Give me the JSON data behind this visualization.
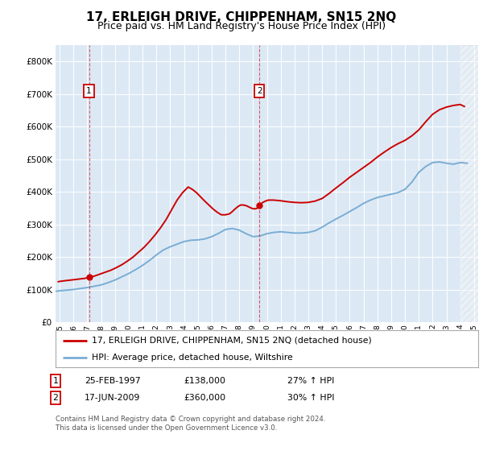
{
  "title": "17, ERLEIGH DRIVE, CHIPPENHAM, SN15 2NQ",
  "subtitle": "Price paid vs. HM Land Registry's House Price Index (HPI)",
  "title_fontsize": 11,
  "subtitle_fontsize": 9,
  "background_color": "#dce9f5",
  "plot_bg_color": "#dce9f5",
  "legend_line1": "17, ERLEIGH DRIVE, CHIPPENHAM, SN15 2NQ (detached house)",
  "legend_line2": "HPI: Average price, detached house, Wiltshire",
  "red_color": "#cc0000",
  "blue_color": "#7aadd4",
  "annotation1": {
    "label": "1",
    "date": "25-FEB-1997",
    "price": 138000,
    "hpi_pct": "27% ↑ HPI"
  },
  "annotation2": {
    "label": "2",
    "date": "17-JUN-2009",
    "price": 360000,
    "hpi_pct": "30% ↑ HPI"
  },
  "footer": "Contains HM Land Registry data © Crown copyright and database right 2024.\nThis data is licensed under the Open Government Licence v3.0.",
  "ylim": [
    0,
    850000
  ],
  "yticks": [
    0,
    100000,
    200000,
    300000,
    400000,
    500000,
    600000,
    700000,
    800000
  ],
  "xlim_start": 1994.7,
  "xlim_end": 2025.3,
  "hpi_years": [
    1994.5,
    1995,
    1995.5,
    1996,
    1996.5,
    1997,
    1997.5,
    1998,
    1998.5,
    1999,
    1999.5,
    2000,
    2000.5,
    2001,
    2001.5,
    2002,
    2002.5,
    2003,
    2003.5,
    2004,
    2004.5,
    2005,
    2005.5,
    2006,
    2006.5,
    2007,
    2007.5,
    2008,
    2008.5,
    2009,
    2009.5,
    2010,
    2010.5,
    2011,
    2011.5,
    2012,
    2012.5,
    2013,
    2013.5,
    2014,
    2014.5,
    2015,
    2015.5,
    2016,
    2016.5,
    2017,
    2017.5,
    2018,
    2018.5,
    2019,
    2019.5,
    2020,
    2020.5,
    2021,
    2021.5,
    2022,
    2022.5,
    2023,
    2023.5,
    2024,
    2024.5
  ],
  "hpi_values": [
    95000,
    97000,
    99000,
    101000,
    104000,
    107000,
    111000,
    115000,
    122000,
    130000,
    140000,
    150000,
    162000,
    175000,
    190000,
    207000,
    222000,
    232000,
    240000,
    248000,
    252000,
    253000,
    256000,
    263000,
    273000,
    285000,
    288000,
    283000,
    272000,
    263000,
    265000,
    272000,
    276000,
    278000,
    276000,
    274000,
    274000,
    276000,
    281000,
    292000,
    305000,
    317000,
    328000,
    340000,
    352000,
    365000,
    375000,
    383000,
    388000,
    393000,
    398000,
    408000,
    430000,
    460000,
    478000,
    490000,
    492000,
    488000,
    485000,
    490000,
    488000
  ],
  "price_years": [
    1994.9,
    1995.2,
    1995.6,
    1996.0,
    1996.4,
    1996.8,
    1997.1,
    1997.5,
    1997.9,
    1998.3,
    1998.7,
    1999.1,
    1999.5,
    1999.9,
    2000.3,
    2000.7,
    2001.1,
    2001.5,
    2001.9,
    2002.3,
    2002.7,
    2003.1,
    2003.5,
    2003.9,
    2004.3,
    2004.6,
    2004.9,
    2005.2,
    2005.5,
    2005.8,
    2006.1,
    2006.4,
    2006.7,
    2007.0,
    2007.3,
    2007.5,
    2007.7,
    2007.9,
    2008.1,
    2008.3,
    2008.5,
    2008.7,
    2008.9,
    2009.1,
    2009.3,
    2009.5,
    2009.7,
    2009.9,
    2010.1,
    2010.5,
    2011.0,
    2011.5,
    2012.0,
    2012.5,
    2013.0,
    2013.5,
    2014.0,
    2014.5,
    2015.0,
    2015.5,
    2016.0,
    2016.5,
    2017.0,
    2017.5,
    2018.0,
    2018.5,
    2019.0,
    2019.5,
    2020.0,
    2020.5,
    2021.0,
    2021.5,
    2022.0,
    2022.5,
    2023.0,
    2023.5,
    2024.0,
    2024.3
  ],
  "price_values": [
    125000,
    127000,
    129000,
    131000,
    133000,
    135000,
    138000,
    142000,
    148000,
    154000,
    160000,
    168000,
    177000,
    188000,
    200000,
    215000,
    230000,
    248000,
    268000,
    290000,
    315000,
    345000,
    375000,
    398000,
    415000,
    408000,
    398000,
    385000,
    372000,
    360000,
    348000,
    338000,
    330000,
    330000,
    333000,
    340000,
    348000,
    355000,
    360000,
    360000,
    358000,
    354000,
    350000,
    348000,
    350000,
    360000,
    368000,
    372000,
    375000,
    375000,
    373000,
    370000,
    368000,
    367000,
    368000,
    372000,
    380000,
    395000,
    412000,
    428000,
    445000,
    460000,
    475000,
    490000,
    507000,
    522000,
    536000,
    548000,
    558000,
    572000,
    590000,
    615000,
    638000,
    652000,
    660000,
    665000,
    668000,
    662000
  ],
  "sale1_year": 1997.12,
  "sale1_price": 138000,
  "sale2_year": 2009.46,
  "sale2_price": 360000,
  "hatch_region_start": 2024.0,
  "hatch_region_end": 2025.3
}
